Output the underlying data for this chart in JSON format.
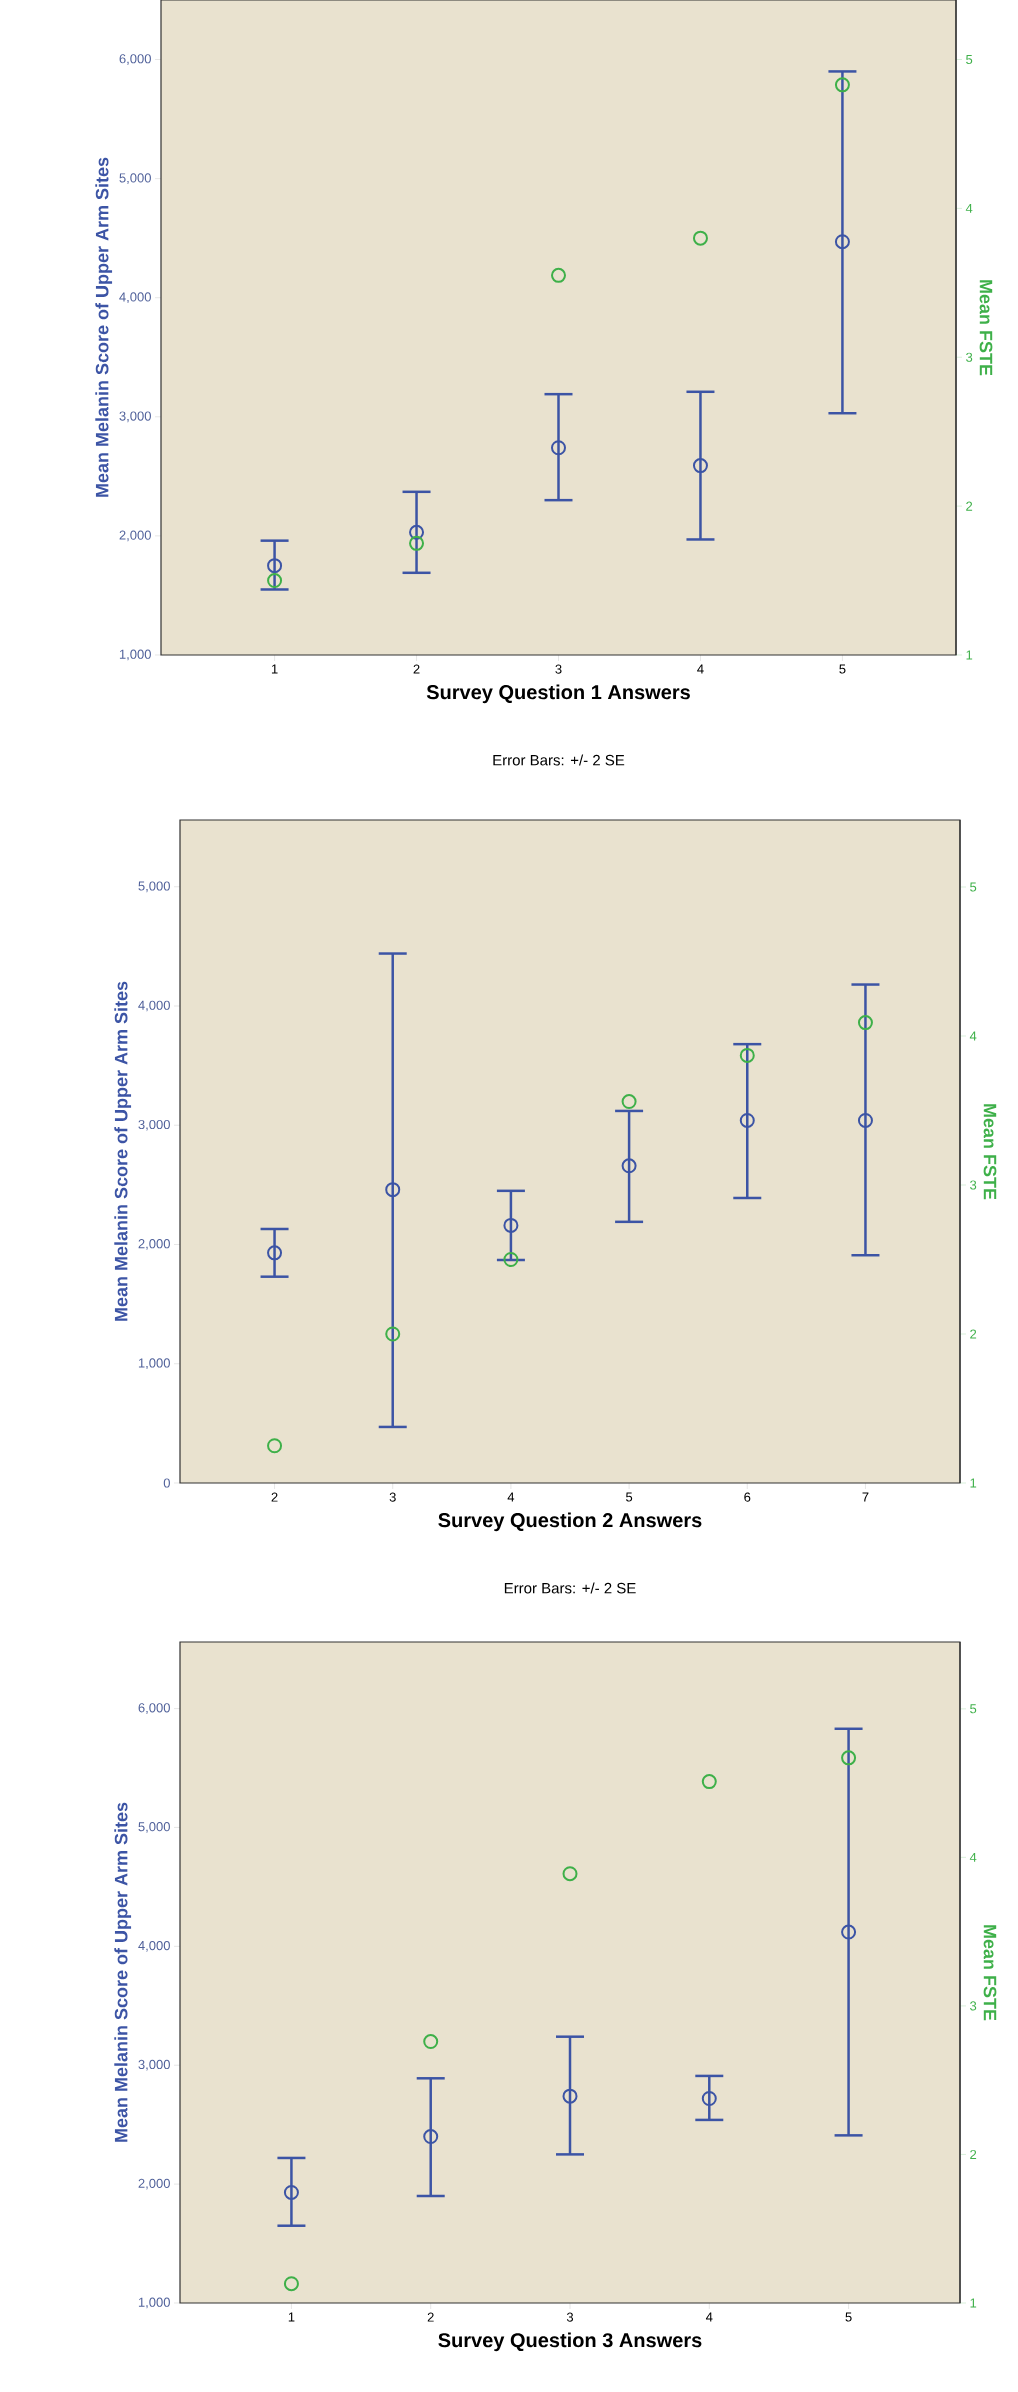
{
  "chart_data": [
    {
      "type": "scatter",
      "categories": [
        "1",
        "2",
        "3",
        "4",
        "5"
      ],
      "xlabel": "Survey Question 1 Answers",
      "ylabel": "Mean Melanin Score of Upper Arm Sites",
      "y2label": "Mean FSTE",
      "annotations": [
        "Error Bars: +/- 2 SE"
      ],
      "ylim": [
        1000,
        6500
      ],
      "yticks": [
        {
          "value": 1000,
          "label": "1,000"
        },
        {
          "value": 2000,
          "label": "2,000"
        },
        {
          "value": 3000,
          "label": "3,000"
        },
        {
          "value": 4000,
          "label": "4,000"
        },
        {
          "value": 5000,
          "label": "5,000"
        },
        {
          "value": 6000,
          "label": "6,000"
        }
      ],
      "y2lim": [
        1,
        5.4
      ],
      "y2ticks": [
        1,
        2,
        3,
        4,
        5
      ],
      "marker": "circle",
      "series": [
        {
          "color": "#3c54a5",
          "values": [
            1750,
            2030,
            2740,
            2590,
            4470
          ],
          "errors": [
            [
              1550,
              1960
            ],
            [
              1690,
              2370
            ],
            [
              2300,
              3190
            ],
            [
              1970,
              3210
            ],
            [
              3030,
              5900
            ]
          ]
        },
        {
          "color": "#3eb049",
          "axis": "y2",
          "values": [
            1.5,
            1.75,
            3.55,
            3.8,
            4.83
          ]
        }
      ]
    },
    {
      "type": "scatter",
      "categories": [
        "2",
        "3",
        "4",
        "5",
        "6",
        "7"
      ],
      "xlabel": "Survey Question 2 Answers",
      "ylabel": "Mean Melanin Score of Upper Arm Sites",
      "y2label": "Mean FSTE",
      "annotations": [
        "Error Bars: +/- 2 SE"
      ],
      "ylim": [
        0,
        5560
      ],
      "yticks": [
        0,
        {
          "value": 1000,
          "label": "1,000"
        },
        {
          "value": 2000,
          "label": "2,000"
        },
        {
          "value": 3000,
          "label": "3,000"
        },
        {
          "value": 4000,
          "label": "4,000"
        },
        {
          "value": 5000,
          "label": "5,000"
        }
      ],
      "y2lim": [
        1,
        5.45
      ],
      "y2ticks": [
        1,
        2,
        3,
        4,
        5
      ],
      "marker": "circle",
      "series": [
        {
          "color": "#3c54a5",
          "values": [
            1930,
            2460,
            2160,
            2660,
            3040,
            3040
          ],
          "errors": [
            [
              1730,
              2130
            ],
            [
              470,
              4440
            ],
            [
              1870,
              2450
            ],
            [
              2190,
              3120
            ],
            [
              2390,
              3680
            ],
            [
              1910,
              4180
            ]
          ]
        },
        {
          "color": "#3eb049",
          "axis": "y2",
          "values": [
            1.25,
            2.0,
            2.5,
            3.56,
            3.87,
            4.09
          ]
        }
      ]
    },
    {
      "type": "scatter",
      "categories": [
        "1",
        "2",
        "3",
        "4",
        "5"
      ],
      "xlabel": "Survey Question 3 Answers",
      "ylabel": "Mean Melanin Score of Upper Arm Sites",
      "y2label": "Mean FSTE",
      "ylim": [
        1000,
        6560
      ],
      "yticks": [
        {
          "value": 1000,
          "label": "1,000"
        },
        {
          "value": 2000,
          "label": "2,000"
        },
        {
          "value": 3000,
          "label": "3,000"
        },
        {
          "value": 4000,
          "label": "4,000"
        },
        {
          "value": 5000,
          "label": "5,000"
        },
        {
          "value": 6000,
          "label": "6,000"
        }
      ],
      "y2lim": [
        1,
        5.45
      ],
      "y2ticks": [
        1,
        2,
        3,
        4,
        5
      ],
      "marker": "circle",
      "series": [
        {
          "color": "#3c54a5",
          "values": [
            1930,
            2400,
            2740,
            2720,
            4120
          ],
          "errors": [
            [
              1650,
              2220
            ],
            [
              1900,
              2890
            ],
            [
              2250,
              3240
            ],
            [
              2540,
              2910
            ],
            [
              2410,
              5830
            ]
          ]
        },
        {
          "color": "#3eb049",
          "axis": "y2",
          "values": [
            1.13,
            2.76,
            3.89,
            4.51,
            4.67
          ]
        }
      ]
    }
  ]
}
